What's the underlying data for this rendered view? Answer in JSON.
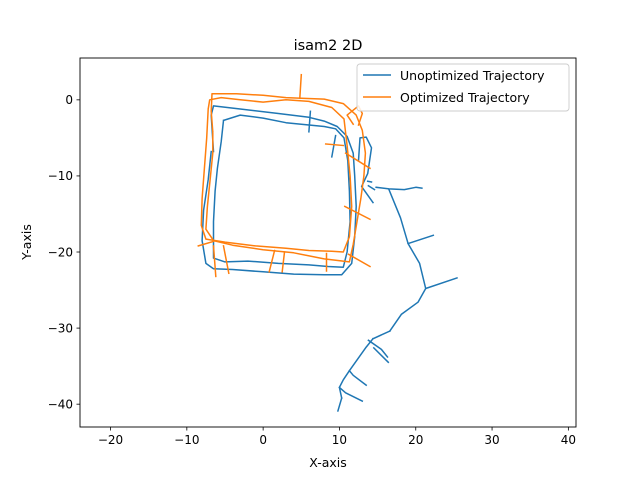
{
  "chart_data": {
    "type": "line",
    "title": "isam2 2D",
    "xlabel": "X-axis",
    "ylabel": "Y-axis",
    "xlim": [
      -24,
      41
    ],
    "ylim": [
      -43,
      5.5
    ],
    "xticks": [
      -20,
      -10,
      0,
      10,
      20,
      30,
      40
    ],
    "yticks": [
      -40,
      -30,
      -20,
      -10,
      0
    ],
    "grid": false,
    "legend_position": "top-right",
    "series": [
      {
        "name": "Unoptimized Trajectory",
        "color": "#1f77b4",
        "segments": [
          [
            [
              -6.5,
              -6.8
            ],
            [
              -6.8,
              -2
            ],
            [
              -6.5,
              -0.8
            ],
            [
              -3,
              -1.2
            ],
            [
              2,
              -1.8
            ],
            [
              6,
              -2.3
            ],
            [
              8,
              -2.8
            ],
            [
              9.7,
              -3.5
            ],
            [
              11,
              -4.8
            ],
            [
              11.8,
              -7
            ],
            [
              12,
              -10
            ],
            [
              12.2,
              -14
            ],
            [
              12,
              -18
            ],
            [
              11.6,
              -21.5
            ],
            [
              10.3,
              -23
            ],
            [
              8,
              -23
            ],
            [
              4,
              -22.9
            ],
            [
              0,
              -22.6
            ],
            [
              -4,
              -22.3
            ],
            [
              -6.5,
              -22.2
            ],
            [
              -7.5,
              -21.5
            ],
            [
              -8,
              -18.5
            ],
            [
              -7.8,
              -14.5
            ],
            [
              -7.2,
              -10.5
            ],
            [
              -6.8,
              -6.8
            ]
          ],
          [
            [
              -5.2,
              -2.7
            ],
            [
              -5.5,
              -5.5
            ],
            [
              -6,
              -9
            ],
            [
              -6.3,
              -12
            ],
            [
              -6.5,
              -16
            ],
            [
              -6.5,
              -18.5
            ],
            [
              -6.5,
              -20.8
            ],
            [
              -5,
              -21.3
            ],
            [
              -2,
              -21.2
            ],
            [
              2,
              -21.5
            ],
            [
              6,
              -21.7
            ],
            [
              8.5,
              -21.9
            ],
            [
              10.5,
              -22
            ],
            [
              11,
              -20
            ],
            [
              11.4,
              -16
            ],
            [
              11.3,
              -12
            ],
            [
              11.1,
              -8
            ],
            [
              10.6,
              -5
            ],
            [
              9.5,
              -3.8
            ],
            [
              8,
              -3.5
            ],
            [
              6,
              -3.3
            ],
            [
              3,
              -3
            ],
            [
              0,
              -2.4
            ],
            [
              -3,
              -2
            ],
            [
              -5.2,
              -2.7
            ]
          ],
          [
            [
              6,
              -4.2
            ],
            [
              6.2,
              -1.5
            ]
          ],
          [
            [
              9.5,
              -4.7
            ],
            [
              9,
              -7.5
            ]
          ],
          [
            [
              12.5,
              -8
            ],
            [
              12.7,
              -5
            ],
            [
              13.5,
              -4.9
            ],
            [
              14.2,
              -6.3
            ],
            [
              13.7,
              -9.7
            ],
            [
              12.9,
              -11.4
            ],
            [
              14.4,
              -13.5
            ]
          ],
          [
            [
              13.8,
              -11.3
            ],
            [
              14.6,
              -11.8
            ]
          ],
          [
            [
              13.7,
              -10.7
            ],
            [
              14.2,
              -10.8
            ]
          ],
          [
            [
              14.8,
              -11.5
            ],
            [
              16.5,
              -11.7
            ],
            [
              18.5,
              -11.8
            ],
            [
              20,
              -11.5
            ],
            [
              20.8,
              -11.6
            ]
          ],
          [
            [
              16.5,
              -11.8
            ],
            [
              18,
              -15.5
            ],
            [
              19,
              -18.9
            ],
            [
              22.3,
              -17.8
            ]
          ],
          [
            [
              19,
              -18.9
            ],
            [
              20.5,
              -21.5
            ],
            [
              21.3,
              -24.8
            ],
            [
              25.4,
              -23.4
            ]
          ],
          [
            [
              21.3,
              -24.8
            ],
            [
              20.3,
              -26.6
            ],
            [
              18.1,
              -28.2
            ],
            [
              16.6,
              -30.4
            ]
          ],
          [
            [
              16.6,
              -30.4
            ],
            [
              14.4,
              -31.4
            ]
          ],
          [
            [
              14.4,
              -31.4
            ],
            [
              13.5,
              -32.5
            ],
            [
              11.3,
              -35.6
            ],
            [
              10.5,
              -36.8
            ],
            [
              10,
              -37.8
            ],
            [
              10.3,
              -39.2
            ]
          ],
          [
            [
              11.3,
              -35.6
            ],
            [
              11.8,
              -36.2
            ],
            [
              13.5,
              -37.5
            ]
          ],
          [
            [
              10,
              -37.8
            ],
            [
              10.8,
              -38.5
            ],
            [
              13,
              -39.6
            ]
          ],
          [
            [
              10.3,
              -39.2
            ],
            [
              9.8,
              -40.9
            ]
          ],
          [
            [
              13.8,
              -31.6
            ],
            [
              15.5,
              -32.8
            ],
            [
              16.3,
              -33.8
            ]
          ],
          [
            [
              14.5,
              -32.6
            ],
            [
              16.4,
              -34.5
            ]
          ]
        ]
      },
      {
        "name": "Optimized Trajectory",
        "color": "#ff7f0e",
        "segments": [
          [
            [
              -6.6,
              -4.2
            ],
            [
              -6.8,
              -1.5
            ],
            [
              -6.7,
              0.8
            ],
            [
              -3.5,
              0.8
            ],
            [
              0,
              0.6
            ],
            [
              3,
              0.3
            ],
            [
              5,
              0.2
            ],
            [
              8,
              0.1
            ],
            [
              10.5,
              -0.5
            ],
            [
              12.2,
              -2
            ],
            [
              13,
              -4
            ],
            [
              13.4,
              -7
            ],
            [
              13.2,
              -10
            ],
            [
              12.8,
              -13
            ],
            [
              12.3,
              -16
            ],
            [
              11.8,
              -19
            ],
            [
              11.3,
              -21.3
            ],
            [
              8,
              -20.9
            ],
            [
              4,
              -20.1
            ],
            [
              0,
              -19.7
            ],
            [
              -4,
              -19.1
            ],
            [
              -6.5,
              -18.5
            ],
            [
              -7.5,
              -17
            ],
            [
              -7.3,
              -14
            ],
            [
              -6.9,
              -10
            ],
            [
              -6.6,
              -7
            ],
            [
              -6.6,
              -4.2
            ]
          ],
          [
            [
              -7.2,
              -1.2
            ],
            [
              -7.4,
              -5
            ],
            [
              -7.7,
              -9
            ],
            [
              -8,
              -13
            ],
            [
              -8.1,
              -16.5
            ],
            [
              -7.5,
              -18.3
            ],
            [
              -5,
              -18.7
            ],
            [
              -1,
              -19.2
            ],
            [
              3,
              -19.5
            ],
            [
              6,
              -19.8
            ],
            [
              9,
              -19.9
            ],
            [
              10.5,
              -20
            ],
            [
              11.3,
              -18
            ],
            [
              11.6,
              -14
            ],
            [
              11.4,
              -10
            ],
            [
              11,
              -6
            ],
            [
              10.6,
              -2.5
            ],
            [
              9,
              -1
            ],
            [
              6,
              -0.2
            ],
            [
              3,
              0
            ],
            [
              0,
              -0.3
            ],
            [
              -3,
              0
            ],
            [
              -5.5,
              0.3
            ],
            [
              -7,
              0
            ],
            [
              -7.2,
              -1.2
            ]
          ],
          [
            [
              4.8,
              0.2
            ],
            [
              5,
              3.3
            ]
          ],
          [
            [
              -8.5,
              -19.2
            ],
            [
              -6.5,
              -18.6
            ]
          ],
          [
            [
              -6.5,
              -19.2
            ],
            [
              -6.2,
              -23.2
            ]
          ],
          [
            [
              -5.2,
              -19.2
            ],
            [
              -4.5,
              -22.8
            ]
          ],
          [
            [
              1.5,
              -19.8
            ],
            [
              0.8,
              -22.6
            ]
          ],
          [
            [
              2.8,
              -20
            ],
            [
              2.5,
              -22.6
            ]
          ],
          [
            [
              8.3,
              -20.2
            ],
            [
              8.3,
              -22.5
            ]
          ],
          [
            [
              11.2,
              -20.3
            ],
            [
              14,
              -21.9
            ]
          ],
          [
            [
              10.7,
              -14
            ],
            [
              14,
              -15.7
            ]
          ],
          [
            [
              10.8,
              -7
            ],
            [
              14,
              -9
            ]
          ],
          [
            [
              11.8,
              -3.2
            ],
            [
              11,
              -2
            ],
            [
              12.5,
              -0.8
            ],
            [
              13,
              -1.8
            ],
            [
              12.5,
              -3.3
            ]
          ],
          [
            [
              8.2,
              -5.8
            ],
            [
              10.5,
              -6
            ]
          ]
        ]
      }
    ]
  }
}
